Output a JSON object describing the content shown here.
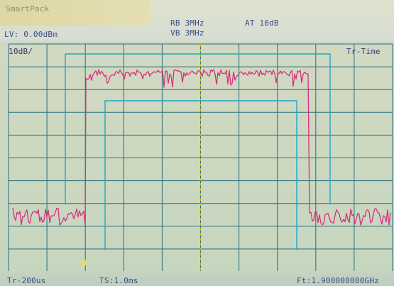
{
  "header": {
    "mode_label": "SmartPack",
    "rbw_label": "RB 3MHz",
    "vbw_label": "VB 3MHz",
    "att_label": "AT 10dB",
    "ref_level_label": "LV: 0.00dBm"
  },
  "plot": {
    "scale_label": "10dB/",
    "trace_mode_label": "Tr-Time",
    "grid_divisions": {
      "x": 10,
      "y": 10
    },
    "colors": {
      "grid": "#24707a",
      "mask": "#1ea6c8",
      "trace": "#d6307e",
      "center_line": "#b8b21a",
      "marker": "#e3e060"
    }
  },
  "footer": {
    "sweep_label": "Tr-200us",
    "ts_label": "TS:1.0ms",
    "freq_label": "Ft:1.900000000GHz"
  }
}
